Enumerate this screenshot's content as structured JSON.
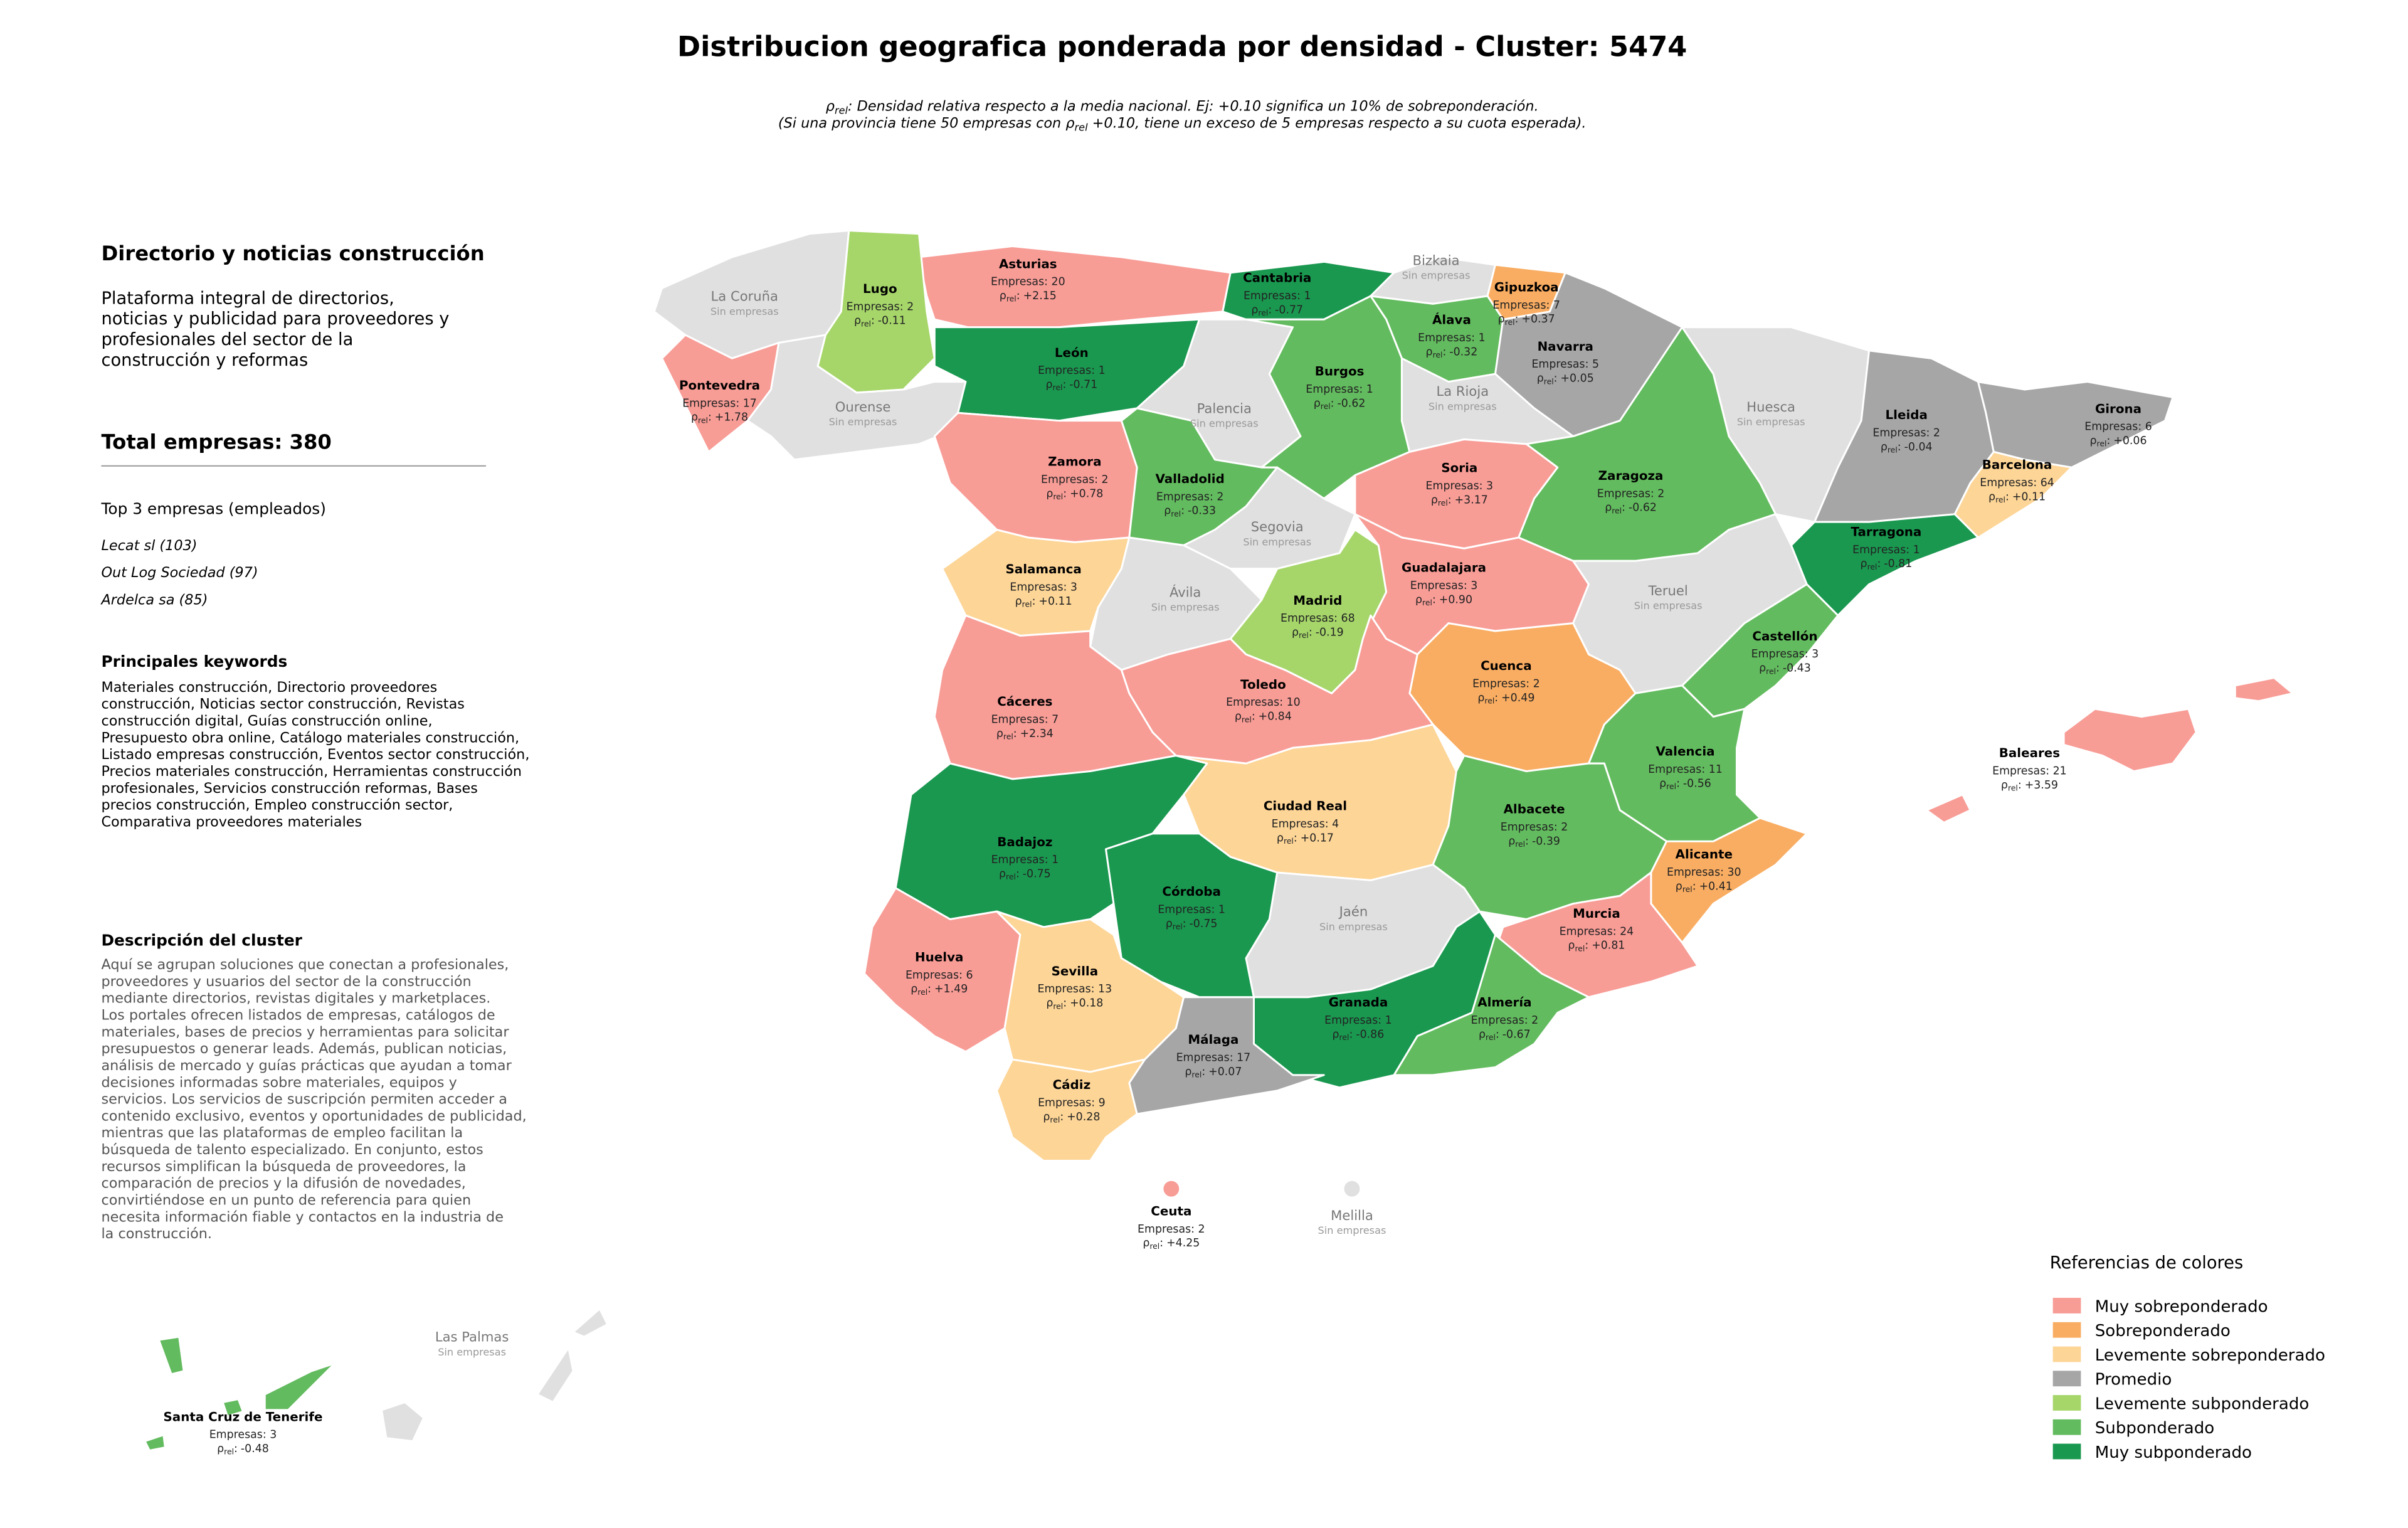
{
  "header": {
    "title": "Distribucion geografica ponderada por densidad - Cluster: 5474",
    "subtitle": [
      {
        "before": "ρ",
        "sub": "rel",
        "after": ": Densidad relativa respecto a la media nacional. Ej: +0.10 significa un 10% de sobreponderación."
      },
      {
        "before": "(Si una provincia tiene 50 empresas con ρ",
        "sub": "rel",
        "after": " +0.10, tiene un exceso de 5 empresas respecto a su cuota esperada)."
      }
    ]
  },
  "sidebar": {
    "name": "Directorio y noticias construcción",
    "tagline": [
      "Plataforma integral de directorios,",
      "noticias y publicidad para proveedores y",
      "profesionales del sector de la",
      "construcción y reformas"
    ],
    "total": "Total empresas: 380",
    "top_title": "Top 3 empresas (empleados)",
    "top": [
      "Lecat sl (103)",
      "Out Log Sociedad (97)",
      "Ardelca sa (85)"
    ],
    "keywords_title": "Principales keywords",
    "keywords": [
      "Materiales construcción, Directorio proveedores",
      "construcción, Noticias sector construcción, Revistas",
      "construcción digital, Guías construcción online,",
      "Presupuesto obra online, Catálogo materiales construcción,",
      "Listado empresas construcción, Eventos sector construcción,",
      "Precios materiales construcción, Herramientas construcción",
      "profesionales, Servicios construcción reformas, Bases",
      "precios construcción, Empleo construcción sector,",
      "Comparativa proveedores materiales"
    ],
    "description_title": "Descripción del cluster",
    "description": [
      "Aquí se agrupan soluciones que conectan a profesionales,",
      "proveedores y usuarios del sector de la construcción",
      "mediante directorios, revistas digitales y marketplaces.",
      "Los portales ofrecen listados de empresas, catálogos de",
      "materiales, bases de precios y herramientas para solicitar",
      "presupuestos o generar leads. Además, publican noticias,",
      "análisis de mercado y guías prácticas que ayudan a tomar",
      "decisiones informadas sobre materiales, equipos y",
      "servicios. Los servicios de suscripción permiten acceder a",
      "contenido exclusivo, eventos y oportunidades de publicidad,",
      "mientras que las plataformas de empleo facilitan la",
      "búsqueda de talento especializado. En conjunto, estos",
      "recursos simplifican la búsqueda de proveedores, la",
      "comparación de precios y la difusión de novedades,",
      "convirtiéndose en un punto de referencia para quien",
      "necesita información fiable y contactos en la industria de",
      "la construcción."
    ]
  },
  "map": {
    "rho_symbol": "ρ",
    "rho_subscript": "rel",
    "rho_separator": ":",
    "no_data_color": "#e0e0e0",
    "provinces": [
      {
        "name": "Asturias",
        "companies": "Empresas: 20",
        "rho": "+2.15",
        "color": "#f89c96"
      },
      {
        "name": "Lugo",
        "companies": "Empresas: 2",
        "rho": "-0.11",
        "color": "#a6d66a"
      },
      {
        "name": "La Coruña",
        "companies": "Sin empresas"
      },
      {
        "name": "Pontevedra",
        "companies": "Empresas: 17",
        "rho": "+1.78",
        "color": "#f89c96"
      },
      {
        "name": "Ourense",
        "companies": "Sin empresas"
      },
      {
        "name": "Cantabria",
        "companies": "Empresas: 1",
        "rho": "-0.77",
        "color": "#1a9850"
      },
      {
        "name": "Bizkaia",
        "companies": "Sin empresas"
      },
      {
        "name": "Gipuzkoa",
        "companies": "Empresas: 7",
        "rho": "+0.37",
        "color": "#f9ad62"
      },
      {
        "name": "Álava",
        "companies": "Empresas: 1",
        "rho": "-0.32",
        "color": "#63bb5f"
      },
      {
        "name": "Navarra",
        "companies": "Empresas: 5",
        "rho": "+0.05",
        "color": "#a6a6a6"
      },
      {
        "name": "León",
        "companies": "Empresas: 1",
        "rho": "-0.71",
        "color": "#1a9850"
      },
      {
        "name": "Palencia",
        "companies": "Sin empresas"
      },
      {
        "name": "Burgos",
        "companies": "Empresas: 1",
        "rho": "-0.62",
        "color": "#63bb5f"
      },
      {
        "name": "La Rioja",
        "companies": "Sin empresas"
      },
      {
        "name": "Huesca",
        "companies": "Sin empresas"
      },
      {
        "name": "Lleida",
        "companies": "Empresas: 2",
        "rho": "-0.04",
        "color": "#a6a6a6"
      },
      {
        "name": "Girona",
        "companies": "Empresas: 6",
        "rho": "+0.06",
        "color": "#a6a6a6"
      },
      {
        "name": "Zamora",
        "companies": "Empresas: 2",
        "rho": "+0.78",
        "color": "#f89c96"
      },
      {
        "name": "Valladolid",
        "companies": "Empresas: 2",
        "rho": "-0.33",
        "color": "#63bb5f"
      },
      {
        "name": "Soria",
        "companies": "Empresas: 3",
        "rho": "+3.17",
        "color": "#f89c96"
      },
      {
        "name": "Zaragoza",
        "companies": "Empresas: 2",
        "rho": "-0.62",
        "color": "#63bb5f"
      },
      {
        "name": "Barcelona",
        "companies": "Empresas: 64",
        "rho": "+0.11",
        "color": "#fdd597"
      },
      {
        "name": "Segovia",
        "companies": "Sin empresas"
      },
      {
        "name": "Tarragona",
        "companies": "Empresas: 1",
        "rho": "-0.81",
        "color": "#1a9850"
      },
      {
        "name": "Salamanca",
        "companies": "Empresas: 3",
        "rho": "+0.11",
        "color": "#fdd597"
      },
      {
        "name": "Guadalajara",
        "companies": "Empresas: 3",
        "rho": "+0.90",
        "color": "#f89c96"
      },
      {
        "name": "Ávila",
        "companies": "Sin empresas"
      },
      {
        "name": "Madrid",
        "companies": "Empresas: 68",
        "rho": "-0.19",
        "color": "#a6d66a"
      },
      {
        "name": "Teruel",
        "companies": "Sin empresas"
      },
      {
        "name": "Castellón",
        "companies": "Empresas: 3",
        "rho": "-0.43",
        "color": "#63bb5f"
      },
      {
        "name": "Cuenca",
        "companies": "Empresas: 2",
        "rho": "+0.49",
        "color": "#f9ad62"
      },
      {
        "name": "Toledo",
        "companies": "Empresas: 10",
        "rho": "+0.84",
        "color": "#f89c96"
      },
      {
        "name": "Cáceres",
        "companies": "Empresas: 7",
        "rho": "+2.34",
        "color": "#f89c96"
      },
      {
        "name": "Valencia",
        "companies": "Empresas: 11",
        "rho": "-0.56",
        "color": "#63bb5f"
      },
      {
        "name": "Baleares",
        "companies": "Empresas: 21",
        "rho": "+3.59",
        "color": "#f89c96"
      },
      {
        "name": "Ciudad Real",
        "companies": "Empresas: 4",
        "rho": "+0.17",
        "color": "#fdd597"
      },
      {
        "name": "Albacete",
        "companies": "Empresas: 2",
        "rho": "-0.39",
        "color": "#63bb5f"
      },
      {
        "name": "Badajoz",
        "companies": "Empresas: 1",
        "rho": "-0.75",
        "color": "#1a9850"
      },
      {
        "name": "Alicante",
        "companies": "Empresas: 30",
        "rho": "+0.41",
        "color": "#f9ad62"
      },
      {
        "name": "Córdoba",
        "companies": "Empresas: 1",
        "rho": "-0.75",
        "color": "#1a9850"
      },
      {
        "name": "Jaén",
        "companies": "Sin empresas"
      },
      {
        "name": "Murcia",
        "companies": "Empresas: 24",
        "rho": "+0.81",
        "color": "#f89c96"
      },
      {
        "name": "Huelva",
        "companies": "Empresas: 6",
        "rho": "+1.49",
        "color": "#f89c96"
      },
      {
        "name": "Sevilla",
        "companies": "Empresas: 13",
        "rho": "+0.18",
        "color": "#fdd597"
      },
      {
        "name": "Granada",
        "companies": "Empresas: 1",
        "rho": "-0.86",
        "color": "#1a9850"
      },
      {
        "name": "Almería",
        "companies": "Empresas: 2",
        "rho": "-0.67",
        "color": "#63bb5f"
      },
      {
        "name": "Málaga",
        "companies": "Empresas: 17",
        "rho": "+0.07",
        "color": "#a6a6a6"
      },
      {
        "name": "Cádiz",
        "companies": "Empresas: 9",
        "rho": "+0.28",
        "color": "#fdd597"
      },
      {
        "name": "Ceuta",
        "companies": "Empresas: 2",
        "rho": "+4.25",
        "color": "#f89c96"
      },
      {
        "name": "Melilla",
        "companies": "Sin empresas"
      },
      {
        "name": "Las Palmas",
        "companies": "Sin empresas"
      },
      {
        "name": "Santa Cruz de Tenerife",
        "companies": "Empresas: 3",
        "rho": "-0.48",
        "color": "#63bb5f"
      }
    ]
  },
  "legend": {
    "title": "Referencias de colores",
    "items": [
      {
        "label": "Muy sobreponderado",
        "color": "#f89c96"
      },
      {
        "label": "Sobreponderado",
        "color": "#f9ad62"
      },
      {
        "label": "Levemente sobreponderado",
        "color": "#fdd597"
      },
      {
        "label": "Promedio",
        "color": "#a6a6a6"
      },
      {
        "label": "Levemente subponderado",
        "color": "#a6d66a"
      },
      {
        "label": "Subponderado",
        "color": "#63bb5f"
      },
      {
        "label": "Muy subponderado",
        "color": "#1a9850"
      }
    ]
  }
}
